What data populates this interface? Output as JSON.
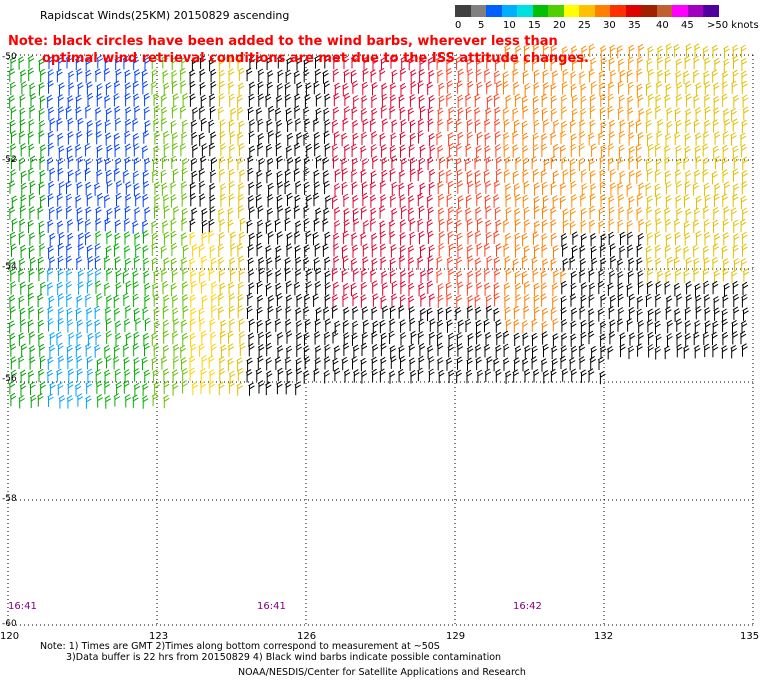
{
  "header": {
    "title": "Rapidscat Winds(25KM) 20150829 ascending",
    "note_line1": "Note: black circles have been added to the wind barbs, wherever less than",
    "note_line2": "optimal wind retrieval conditions are met due to the ISS attitude changes."
  },
  "legend": {
    "unit": "knots",
    "bins": [
      {
        "label": "0",
        "color": "#404040"
      },
      {
        "label": "",
        "color": "#808080"
      },
      {
        "label": "5",
        "color": "#0060ff"
      },
      {
        "label": "",
        "color": "#00b0ff"
      },
      {
        "label": "10",
        "color": "#00e0e0"
      },
      {
        "label": "",
        "color": "#00c000"
      },
      {
        "label": "15",
        "color": "#50d000"
      },
      {
        "label": "20",
        "color": "#ffff00"
      },
      {
        "label": "",
        "color": "#ffc000"
      },
      {
        "label": "25",
        "color": "#ff8000"
      },
      {
        "label": "",
        "color": "#ff3000"
      },
      {
        "label": "30",
        "color": "#e00000"
      },
      {
        "label": "35",
        "color": "#a02000"
      },
      {
        "label": "",
        "color": "#c06030"
      },
      {
        "label": "40",
        "color": "#ff00ff"
      },
      {
        "label": "45",
        "color": "#a000c0"
      },
      {
        "label": ">50",
        "color": "#5000a0"
      }
    ],
    "tick_labels": [
      "0",
      "5",
      "10",
      "15",
      "20",
      "25",
      "30",
      "35",
      "40",
      "45",
      ">50 knots"
    ]
  },
  "axes": {
    "longitude_ticks": [
      "120",
      "123",
      "126",
      "129",
      "132",
      "135"
    ],
    "latitude_ticks": [
      "-50",
      "-52",
      "-54",
      "-56",
      "-58",
      "-60"
    ]
  },
  "time_labels": [
    "16:41",
    "16:41",
    "16:42"
  ],
  "footer": {
    "line1": "Note: 1) Times are GMT 2)Times along bottom correspond to measurement at ~50S",
    "line2": "3)Data buffer is 22 hrs from 20150829 4) Black wind barbs indicate possible contamination",
    "line3": "NOAA/NESDIS/Center for Satellite Applications and Research"
  }
}
